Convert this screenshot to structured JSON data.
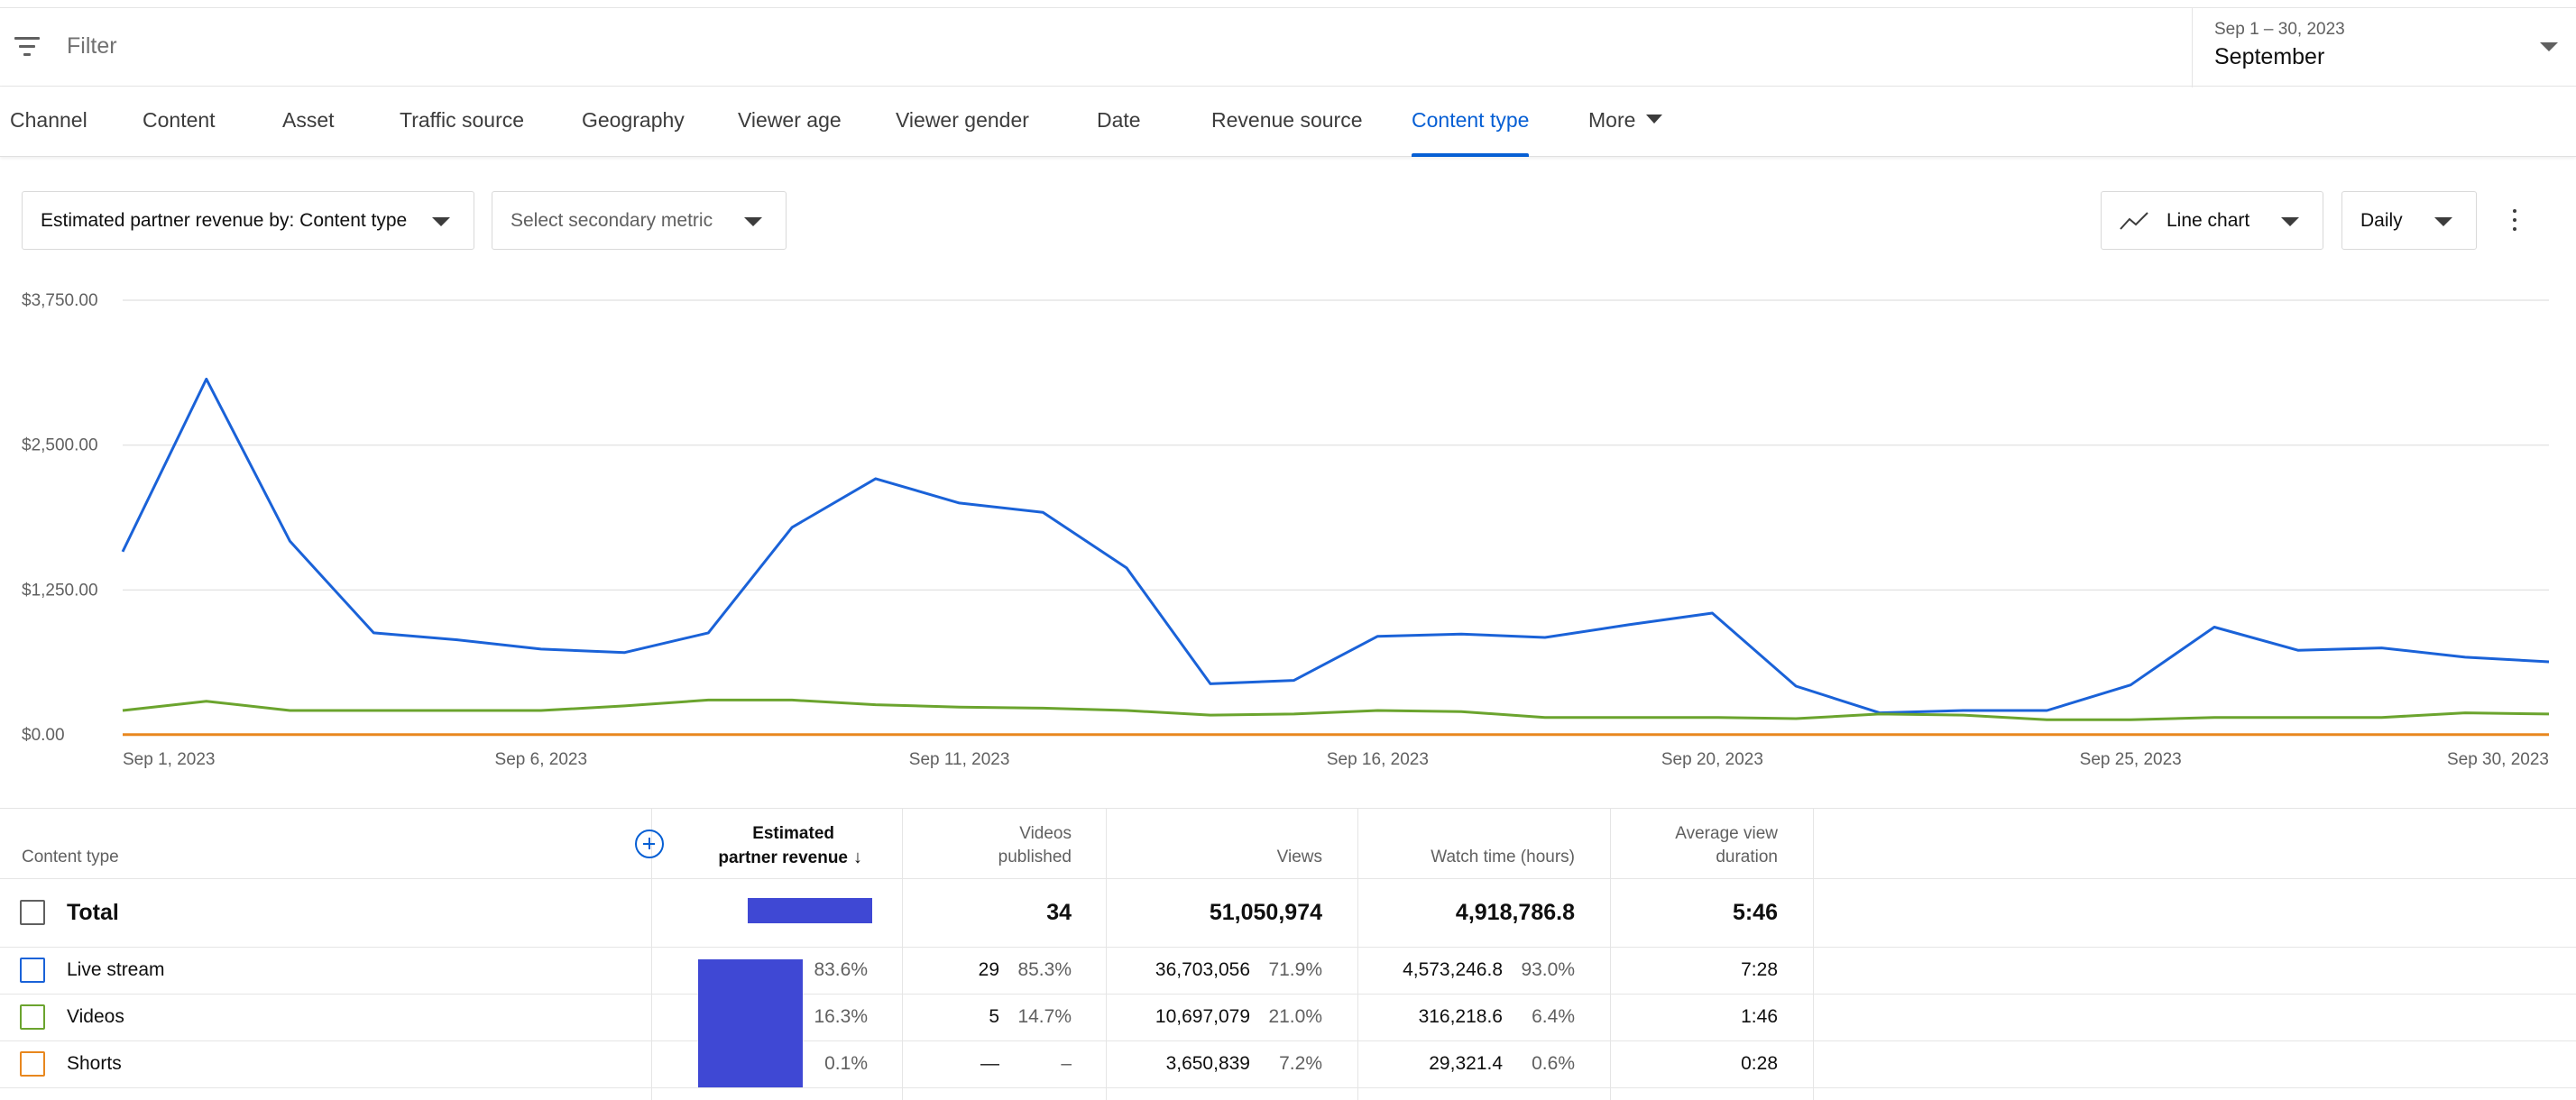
{
  "filter": {
    "placeholder": "Filter"
  },
  "date": {
    "range": "Sep 1 – 30, 2023",
    "label": "September"
  },
  "tabs": [
    {
      "label": "Channel"
    },
    {
      "label": "Content"
    },
    {
      "label": "Asset"
    },
    {
      "label": "Traffic source"
    },
    {
      "label": "Geography"
    },
    {
      "label": "Viewer age"
    },
    {
      "label": "Viewer gender"
    },
    {
      "label": "Date"
    },
    {
      "label": "Revenue source"
    },
    {
      "label": "Content type",
      "active": true
    },
    {
      "label": "More"
    }
  ],
  "controls": {
    "primary_metric": "Estimated partner revenue by: Content type",
    "secondary_metric": "Select secondary metric",
    "chart_type": "Line chart",
    "interval": "Daily"
  },
  "chart_data": {
    "type": "line",
    "title": "",
    "xlabel": "",
    "ylabel": "",
    "ylim": [
      0,
      3750
    ],
    "yticks": [
      "$0.00",
      "$1,250.00",
      "$2,500.00",
      "$3,750.00"
    ],
    "xticks": [
      "Sep 1, 2023",
      "Sep 6, 2023",
      "Sep 11, 2023",
      "Sep 16, 2023",
      "Sep 20, 2023",
      "Sep 25, 2023",
      "Sep 30, 2023"
    ],
    "x": [
      "Sep 1",
      "Sep 2",
      "Sep 3",
      "Sep 4",
      "Sep 5",
      "Sep 6",
      "Sep 7",
      "Sep 8",
      "Sep 9",
      "Sep 10",
      "Sep 11",
      "Sep 12",
      "Sep 13",
      "Sep 14",
      "Sep 15",
      "Sep 16",
      "Sep 17",
      "Sep 18",
      "Sep 19",
      "Sep 20",
      "Sep 21",
      "Sep 22",
      "Sep 23",
      "Sep 24",
      "Sep 25",
      "Sep 26",
      "Sep 27",
      "Sep 28",
      "Sep 29",
      "Sep 30"
    ],
    "series": [
      {
        "name": "Live stream",
        "color": "#1a62d8",
        "values": [
          1580,
          3070,
          1670,
          880,
          820,
          740,
          710,
          880,
          1790,
          2210,
          2000,
          1920,
          1440,
          440,
          470,
          850,
          870,
          840,
          950,
          1050,
          420,
          190,
          210,
          210,
          430,
          930,
          730,
          750,
          670,
          630
        ]
      },
      {
        "name": "Videos",
        "color": "#6ba42e",
        "values": [
          210,
          290,
          210,
          210,
          210,
          210,
          250,
          300,
          300,
          260,
          240,
          230,
          210,
          170,
          180,
          210,
          200,
          150,
          150,
          150,
          140,
          180,
          170,
          130,
          130,
          150,
          150,
          150,
          190,
          180
        ]
      },
      {
        "name": "Shorts",
        "color": "#e8871e",
        "values": [
          2,
          2,
          2,
          2,
          2,
          2,
          2,
          2,
          2,
          2,
          2,
          2,
          2,
          2,
          2,
          2,
          2,
          2,
          2,
          2,
          2,
          2,
          2,
          2,
          2,
          2,
          2,
          2,
          2,
          2
        ]
      }
    ]
  },
  "table": {
    "headers": {
      "content_type": "Content type",
      "revenue_line1": "Estimated",
      "revenue_line2": "partner revenue",
      "sort_arrow": "↓",
      "videos_line1": "Videos",
      "videos_line2": "published",
      "views": "Views",
      "watch_time": "Watch time (hours)",
      "avd_line1": "Average view",
      "avd_line2": "duration"
    },
    "total": {
      "label": "Total",
      "revenue_share": 1.0,
      "videos": "34",
      "views": "51,050,974",
      "watch_time": "4,918,786.8",
      "avd": "5:46"
    },
    "rows": [
      {
        "label": "Live stream",
        "color": "#1a62d8",
        "revenue_pct": "83.6%",
        "videos": "29",
        "videos_pct": "85.3%",
        "views": "36,703,056",
        "views_pct": "71.9%",
        "watch_time": "4,573,246.8",
        "watch_pct": "93.0%",
        "avd": "7:28"
      },
      {
        "label": "Videos",
        "color": "#6ba42e",
        "revenue_pct": "16.3%",
        "videos": "5",
        "videos_pct": "14.7%",
        "views": "10,697,079",
        "views_pct": "21.0%",
        "watch_time": "316,218.6",
        "watch_pct": "6.4%",
        "avd": "1:46"
      },
      {
        "label": "Shorts",
        "color": "#e8871e",
        "revenue_pct": "0.1%",
        "videos": "—",
        "videos_pct": "–",
        "views": "3,650,839",
        "views_pct": "7.2%",
        "watch_time": "29,321.4",
        "watch_pct": "0.6%",
        "avd": "0:28"
      }
    ]
  }
}
